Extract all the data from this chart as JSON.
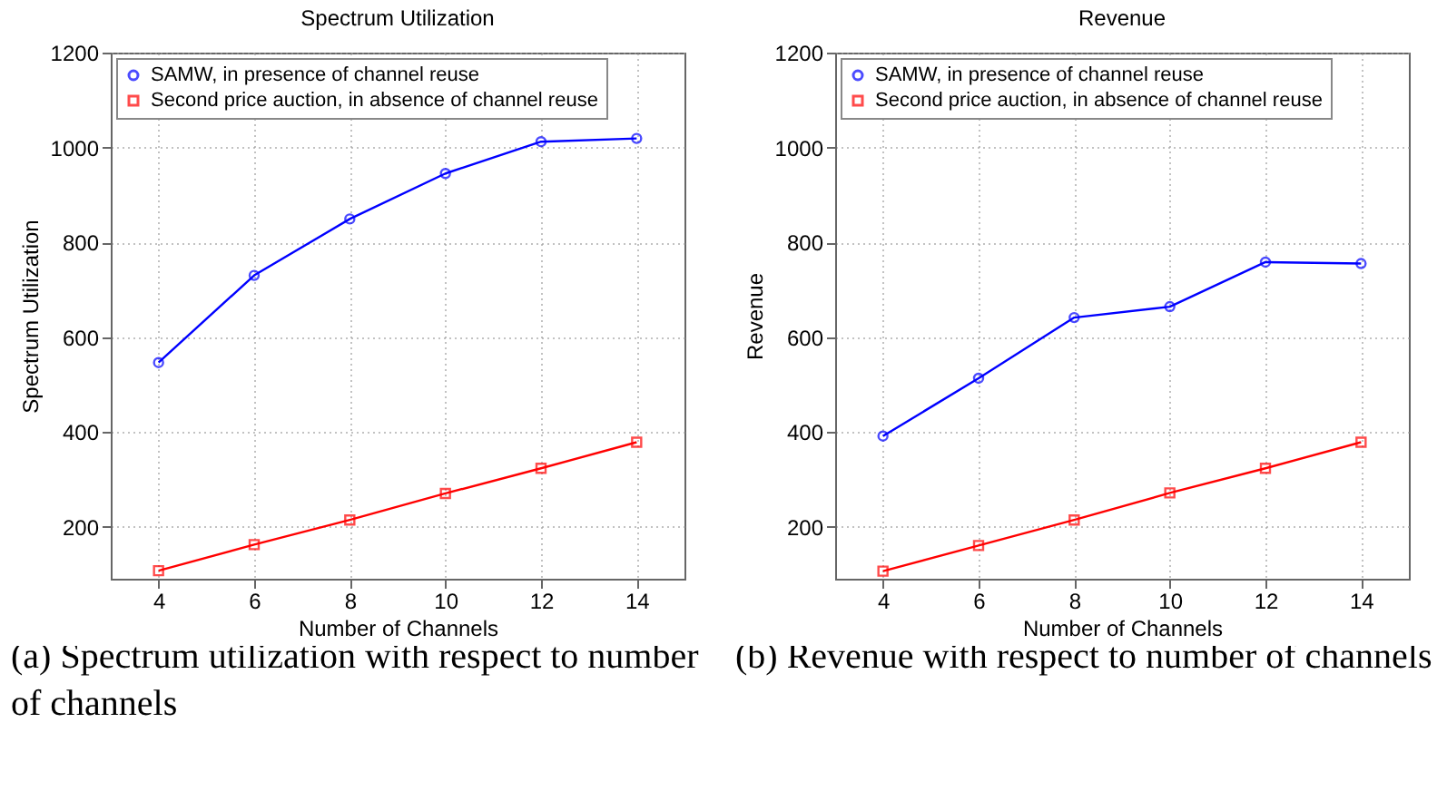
{
  "chart_data": [
    {
      "type": "line",
      "title": "Spectrum Utilization",
      "xlabel": "Number of Channels",
      "ylabel": "Spectrum Utilization",
      "x": [
        4,
        6,
        8,
        10,
        12,
        14
      ],
      "xlim": [
        3,
        15
      ],
      "xticks": [
        4,
        6,
        8,
        10,
        12,
        14
      ],
      "ylim": [
        90,
        1200
      ],
      "yticks": [
        200,
        400,
        600,
        800,
        1000,
        1200
      ],
      "grid": true,
      "legend": "top left",
      "series": [
        {
          "name": "SAMW, in presence of channel reuse",
          "color": "#0000ff",
          "marker": "circle",
          "values": [
            546,
            730,
            849,
            945,
            1012,
            1019
          ]
        },
        {
          "name": "Second price auction, in absence of channel reuse",
          "color": "#ff0000",
          "marker": "square",
          "values": [
            107,
            162,
            214,
            270,
            323,
            378
          ]
        }
      ],
      "annotations": [
        "(a) Spectrum utilization with respect to number of channels"
      ]
    },
    {
      "type": "line",
      "title": "Revenue",
      "xlabel": "Number of Channels",
      "ylabel": "Revenue",
      "x": [
        4,
        6,
        8,
        10,
        12,
        14
      ],
      "xlim": [
        3,
        15
      ],
      "xticks": [
        4,
        6,
        8,
        10,
        12,
        14
      ],
      "ylim": [
        90,
        1200
      ],
      "yticks": [
        200,
        400,
        600,
        800,
        1000,
        1200
      ],
      "grid": true,
      "legend": "top left",
      "series": [
        {
          "name": "SAMW, in presence of channel reuse",
          "color": "#0000ff",
          "marker": "circle",
          "values": [
            391,
            513,
            641,
            664,
            758,
            755
          ]
        },
        {
          "name": "Second price auction, in absence of channel reuse",
          "color": "#ff0000",
          "marker": "square",
          "values": [
            106,
            160,
            214,
            271,
            323,
            378
          ]
        }
      ],
      "annotations": [
        "(b) Revenue with respect to number of channels"
      ]
    }
  ]
}
